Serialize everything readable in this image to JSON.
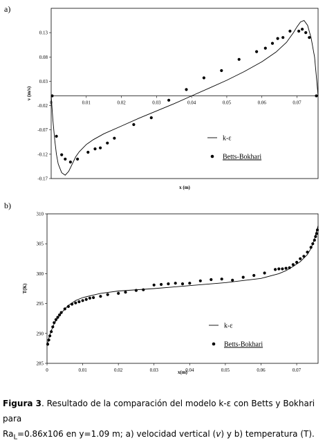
{
  "panels": [
    {
      "label": "a)"
    },
    {
      "label": "b)"
    }
  ],
  "chart_data": [
    {
      "type": "line",
      "panel": "a)",
      "xlabel": "x (m)",
      "ylabel": "v (m/s)",
      "xlim": [
        0,
        0.076
      ],
      "ylim": [
        -0.17,
        0.18
      ],
      "x_ticks": [
        0,
        0.01,
        0.02,
        0.03,
        0.04,
        0.05,
        0.06,
        0.07
      ],
      "x_tick_labels": [
        "0",
        "0.01",
        "0.02",
        "0.03",
        "0.04",
        "0.05",
        "0.06",
        "0.07"
      ],
      "y_ticks": [
        0.13,
        0.08,
        0.03,
        -0.02,
        -0.07,
        -0.12,
        -0.17
      ],
      "y_tick_labels": [
        "0.13",
        "0.08",
        "0.03",
        "-0.02",
        "-0.07",
        "-0.12",
        "-0.17"
      ],
      "legend": {
        "position": "center-right",
        "entries": [
          "k-ε",
          "Betts-Bokhari"
        ]
      },
      "series": [
        {
          "name": "k-ε",
          "style": "line",
          "x": [
            0,
            0.0005,
            0.001,
            0.0015,
            0.002,
            0.003,
            0.004,
            0.005,
            0.006,
            0.007,
            0.008,
            0.01,
            0.012,
            0.015,
            0.02,
            0.025,
            0.03,
            0.035,
            0.04,
            0.045,
            0.05,
            0.055,
            0.06,
            0.064,
            0.067,
            0.069,
            0.07,
            0.071,
            0.072,
            0.073,
            0.074,
            0.075,
            0.0755,
            0.076
          ],
          "y": [
            0,
            -0.05,
            -0.09,
            -0.12,
            -0.14,
            -0.158,
            -0.163,
            -0.155,
            -0.14,
            -0.125,
            -0.115,
            -0.1,
            -0.09,
            -0.078,
            -0.062,
            -0.046,
            -0.031,
            -0.016,
            0,
            0.016,
            0.032,
            0.05,
            0.07,
            0.09,
            0.11,
            0.13,
            0.142,
            0.152,
            0.155,
            0.145,
            0.12,
            0.08,
            0.04,
            0
          ]
        },
        {
          "name": "Betts-Bokhari",
          "style": "scatter",
          "x": [
            0.0003,
            0.0015,
            0.003,
            0.004,
            0.0055,
            0.0075,
            0.0105,
            0.0125,
            0.014,
            0.016,
            0.018,
            0.0235,
            0.0285,
            0.0335,
            0.0385,
            0.0435,
            0.0485,
            0.0535,
            0.0585,
            0.061,
            0.063,
            0.0645,
            0.066,
            0.068,
            0.0705,
            0.0715,
            0.0725,
            0.0735,
            0.0755
          ],
          "y": [
            0.0,
            -0.083,
            -0.121,
            -0.13,
            -0.136,
            -0.13,
            -0.116,
            -0.109,
            -0.107,
            -0.097,
            -0.087,
            -0.059,
            -0.045,
            -0.009,
            0.013,
            0.037,
            0.052,
            0.075,
            0.091,
            0.098,
            0.108,
            0.118,
            0.12,
            0.133,
            0.133,
            0.137,
            0.13,
            0.12,
            0.0
          ]
        }
      ]
    },
    {
      "type": "line",
      "panel": "b)",
      "xlabel": "x(m)",
      "ylabel": "T(K)",
      "xlim": [
        0,
        0.076
      ],
      "ylim": [
        285,
        310
      ],
      "x_ticks": [
        0,
        0.01,
        0.02,
        0.03,
        0.04,
        0.05,
        0.06,
        0.07
      ],
      "x_tick_labels": [
        "0",
        "0.01",
        "0.02",
        "0.03",
        "0.04",
        "0.05",
        "0.06",
        "0.07"
      ],
      "y_ticks": [
        285,
        290,
        295,
        300,
        305,
        310
      ],
      "y_tick_labels": [
        "285",
        "290",
        "295",
        "300",
        "305",
        "310"
      ],
      "legend": {
        "position": "center-right",
        "entries": [
          "k-ε",
          "Betts-Bokhari"
        ]
      },
      "series": [
        {
          "name": "k-ε",
          "style": "line",
          "x": [
            0,
            0.0005,
            0.001,
            0.002,
            0.003,
            0.004,
            0.005,
            0.006,
            0.008,
            0.01,
            0.015,
            0.02,
            0.03,
            0.04,
            0.05,
            0.06,
            0.065,
            0.067,
            0.069,
            0.071,
            0.072,
            0.073,
            0.074,
            0.075,
            0.0755,
            0.076
          ],
          "y": [
            288,
            289.2,
            290.2,
            291.6,
            292.6,
            293.4,
            294.1,
            294.7,
            295.5,
            296,
            296.7,
            297.1,
            297.5,
            298,
            298.5,
            299.2,
            300,
            300.5,
            301.2,
            302,
            302.6,
            303.2,
            304.2,
            305.8,
            307,
            308
          ]
        },
        {
          "name": "Betts-Bokhari",
          "style": "scatter",
          "x": [
            0.0002,
            0.0005,
            0.0008,
            0.0012,
            0.0016,
            0.002,
            0.0025,
            0.003,
            0.0035,
            0.004,
            0.005,
            0.006,
            0.007,
            0.008,
            0.009,
            0.01,
            0.011,
            0.012,
            0.013,
            0.015,
            0.017,
            0.02,
            0.022,
            0.025,
            0.027,
            0.03,
            0.032,
            0.034,
            0.036,
            0.038,
            0.04,
            0.043,
            0.046,
            0.049,
            0.052,
            0.055,
            0.058,
            0.061,
            0.064,
            0.065,
            0.066,
            0.067,
            0.068,
            0.069,
            0.07,
            0.071,
            0.072,
            0.073,
            0.074,
            0.0745,
            0.075,
            0.0753,
            0.0756,
            0.0758
          ],
          "y": [
            288.2,
            288.9,
            289.6,
            290.3,
            291.1,
            291.8,
            292.3,
            292.7,
            293.1,
            293.5,
            294.1,
            294.5,
            294.9,
            295.1,
            295.3,
            295.5,
            295.7,
            295.9,
            296,
            296.2,
            296.5,
            296.7,
            296.9,
            297.2,
            297.3,
            298.1,
            298.2,
            298.3,
            298.4,
            298.3,
            298.4,
            298.8,
            299,
            299.1,
            298.9,
            299.4,
            299.7,
            300.1,
            300.7,
            300.8,
            300.8,
            300.9,
            301,
            301.5,
            301.9,
            302.5,
            302.9,
            303.6,
            304.4,
            305,
            305.6,
            306.2,
            306.7,
            307.3
          ]
        }
      ]
    }
  ],
  "caption": {
    "figure_label": "Figura 3",
    "line1": ". Resultado  de  la comparación del modelo k-ε con Betts y  Bokhari  para",
    "ra_prefix": "Ra",
    "ra_subscript": "L",
    "line2": "=0.86x106 en y=1.09 m; a) velocidad vertical (",
    "v_symbol": "v",
    "line2b": ") y b) temperatura (T)."
  }
}
